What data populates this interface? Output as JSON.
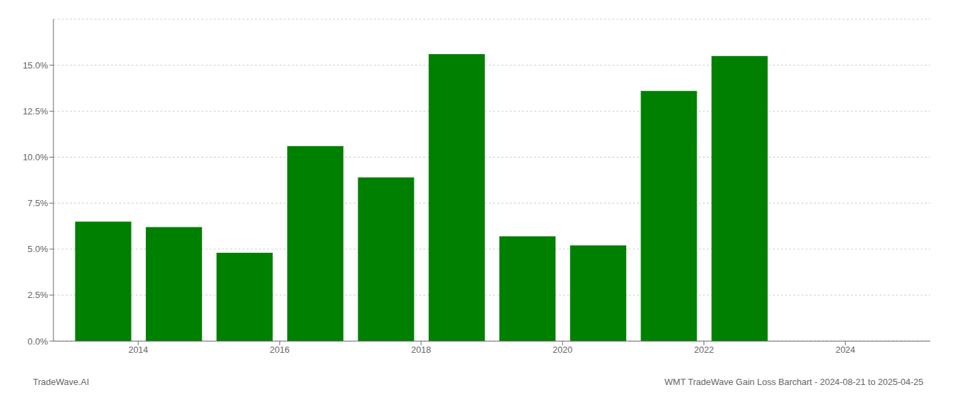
{
  "chart_data": {
    "type": "bar",
    "x": [
      2013,
      2014,
      2015,
      2016,
      2017,
      2018,
      2019,
      2020,
      2021,
      2022
    ],
    "values": [
      0.065,
      0.062,
      0.048,
      0.106,
      0.089,
      0.156,
      0.057,
      0.052,
      0.136,
      0.155
    ],
    "color": "#008000",
    "xlim": [
      2012.3,
      2024.7
    ],
    "xticks": [
      {
        "value": 2013.5,
        "label": "2014"
      },
      {
        "value": 2015.5,
        "label": "2016"
      },
      {
        "value": 2017.5,
        "label": "2018"
      },
      {
        "value": 2019.5,
        "label": "2020"
      },
      {
        "value": 2021.5,
        "label": "2022"
      },
      {
        "value": 2023.5,
        "label": "2024"
      }
    ],
    "ylim": [
      0,
      0.175
    ],
    "yticks": [
      {
        "value": 0.0,
        "label": "0.0%"
      },
      {
        "value": 0.025,
        "label": "2.5%"
      },
      {
        "value": 0.05,
        "label": "5.0%"
      },
      {
        "value": 0.075,
        "label": "7.5%"
      },
      {
        "value": 0.1,
        "label": "10.0%"
      },
      {
        "value": 0.125,
        "label": "12.5%"
      },
      {
        "value": 0.15,
        "label": "15.0%"
      }
    ],
    "grid": "y",
    "annotations": [
      "TradeWave.AI",
      "WMT TradeWave Gain Loss Barchart - 2024-08-21 to 2025-04-25"
    ]
  }
}
